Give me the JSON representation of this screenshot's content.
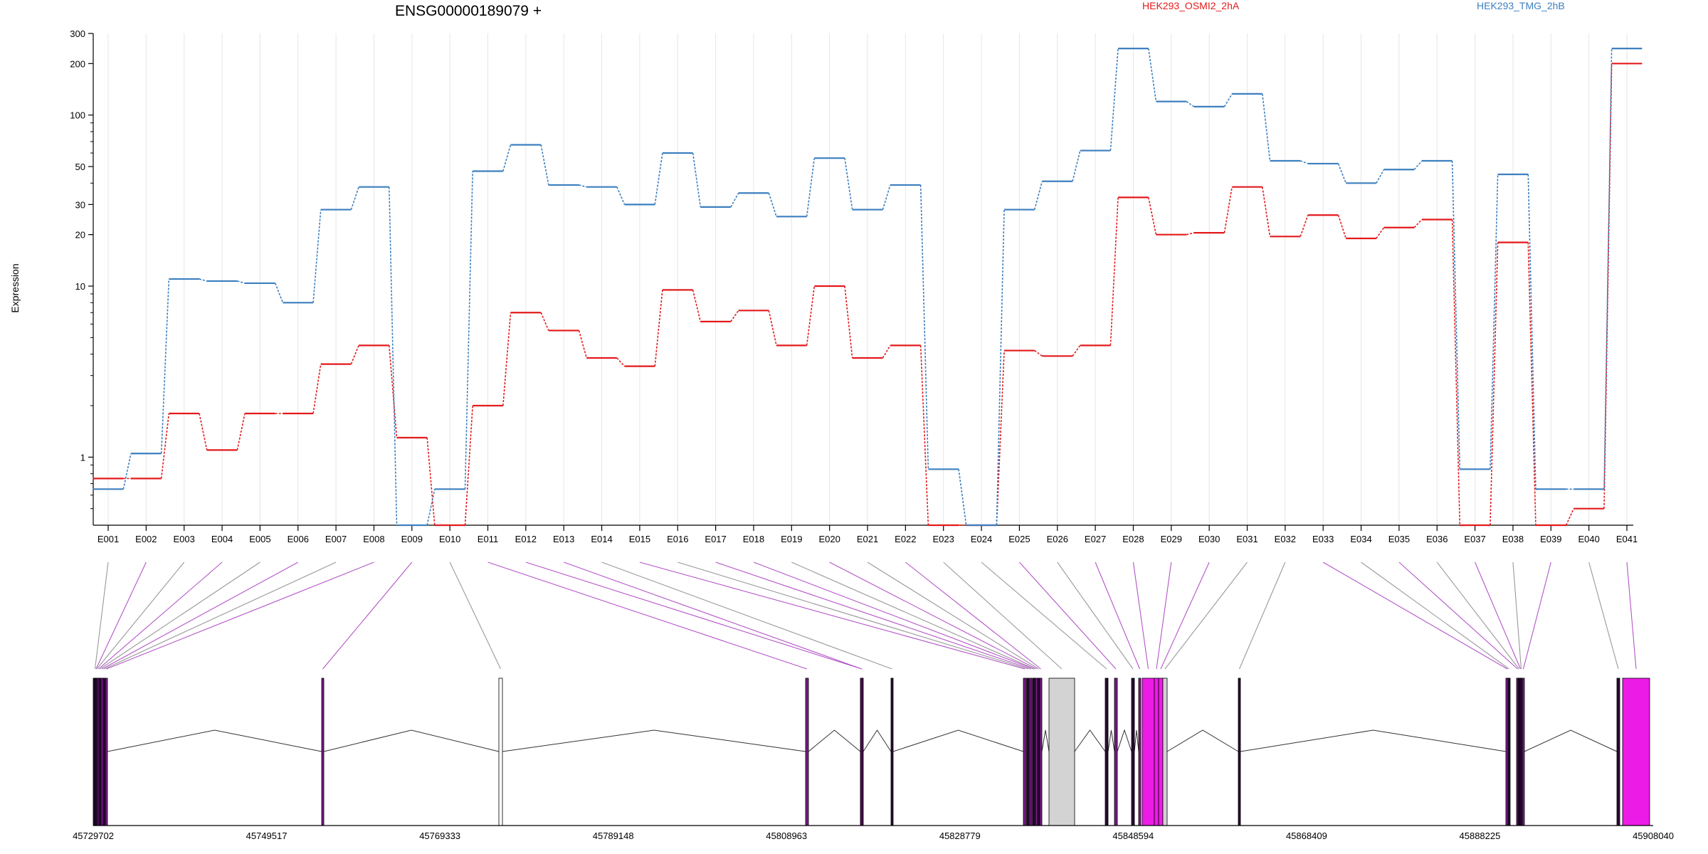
{
  "chart_data": {
    "type": "line",
    "title": "ENSG00000189079 +",
    "ylabel": "Expression",
    "xlabel": "",
    "yscale": "log",
    "yticks": [
      "300",
      "200",
      "100",
      "50",
      "30",
      "20",
      "10",
      "1"
    ],
    "ylim": [
      0.4,
      300
    ],
    "grid": "vertical lines at exon positions",
    "legend_position": "top",
    "categories": [
      "E001",
      "E002",
      "E003",
      "E004",
      "E005",
      "E006",
      "E007",
      "E008",
      "E009",
      "E010",
      "E011",
      "E012",
      "E013",
      "E014",
      "E015",
      "E016",
      "E017",
      "E018",
      "E019",
      "E020",
      "E021",
      "E022",
      "E023",
      "E024",
      "E025",
      "E026",
      "E027",
      "E028",
      "E029",
      "E030",
      "E031",
      "E032",
      "E033",
      "E034",
      "E035",
      "E036",
      "E037",
      "E038",
      "E039",
      "E040",
      "E041"
    ],
    "series": [
      {
        "name": "HEK293_OSMI2_2hA",
        "color": "#e31a1c",
        "values": [
          0.75,
          0.75,
          1.8,
          1.1,
          1.8,
          1.8,
          3.5,
          4.5,
          1.3,
          0.4,
          2.0,
          7.0,
          5.5,
          3.8,
          3.4,
          9.5,
          6.2,
          7.2,
          4.5,
          10.0,
          3.8,
          4.5,
          0.4,
          0.4,
          4.2,
          3.9,
          4.5,
          33,
          20,
          20.5,
          38,
          19.5,
          26,
          19,
          22,
          24.5,
          0.4,
          18,
          0.4,
          0.5,
          200
        ]
      },
      {
        "name": "HEK293_TMG_2hB",
        "color": "#3c7fbf",
        "values": [
          0.65,
          1.05,
          11,
          10.7,
          10.4,
          8.0,
          28,
          38,
          0.4,
          0.65,
          47,
          67,
          39,
          38,
          30,
          60,
          29,
          35,
          25.5,
          56,
          28,
          39,
          0.85,
          0.4,
          28,
          41,
          62,
          245,
          120,
          112,
          133,
          54,
          52,
          40,
          48,
          54,
          0.85,
          45,
          0.65,
          0.65,
          245
        ]
      }
    ]
  },
  "gene_model": {
    "coordinate_labels": [
      "45729702",
      "45749517",
      "45769333",
      "45789148",
      "45808963",
      "45828779",
      "45848594",
      "45868409",
      "45888225",
      "45908040"
    ]
  }
}
